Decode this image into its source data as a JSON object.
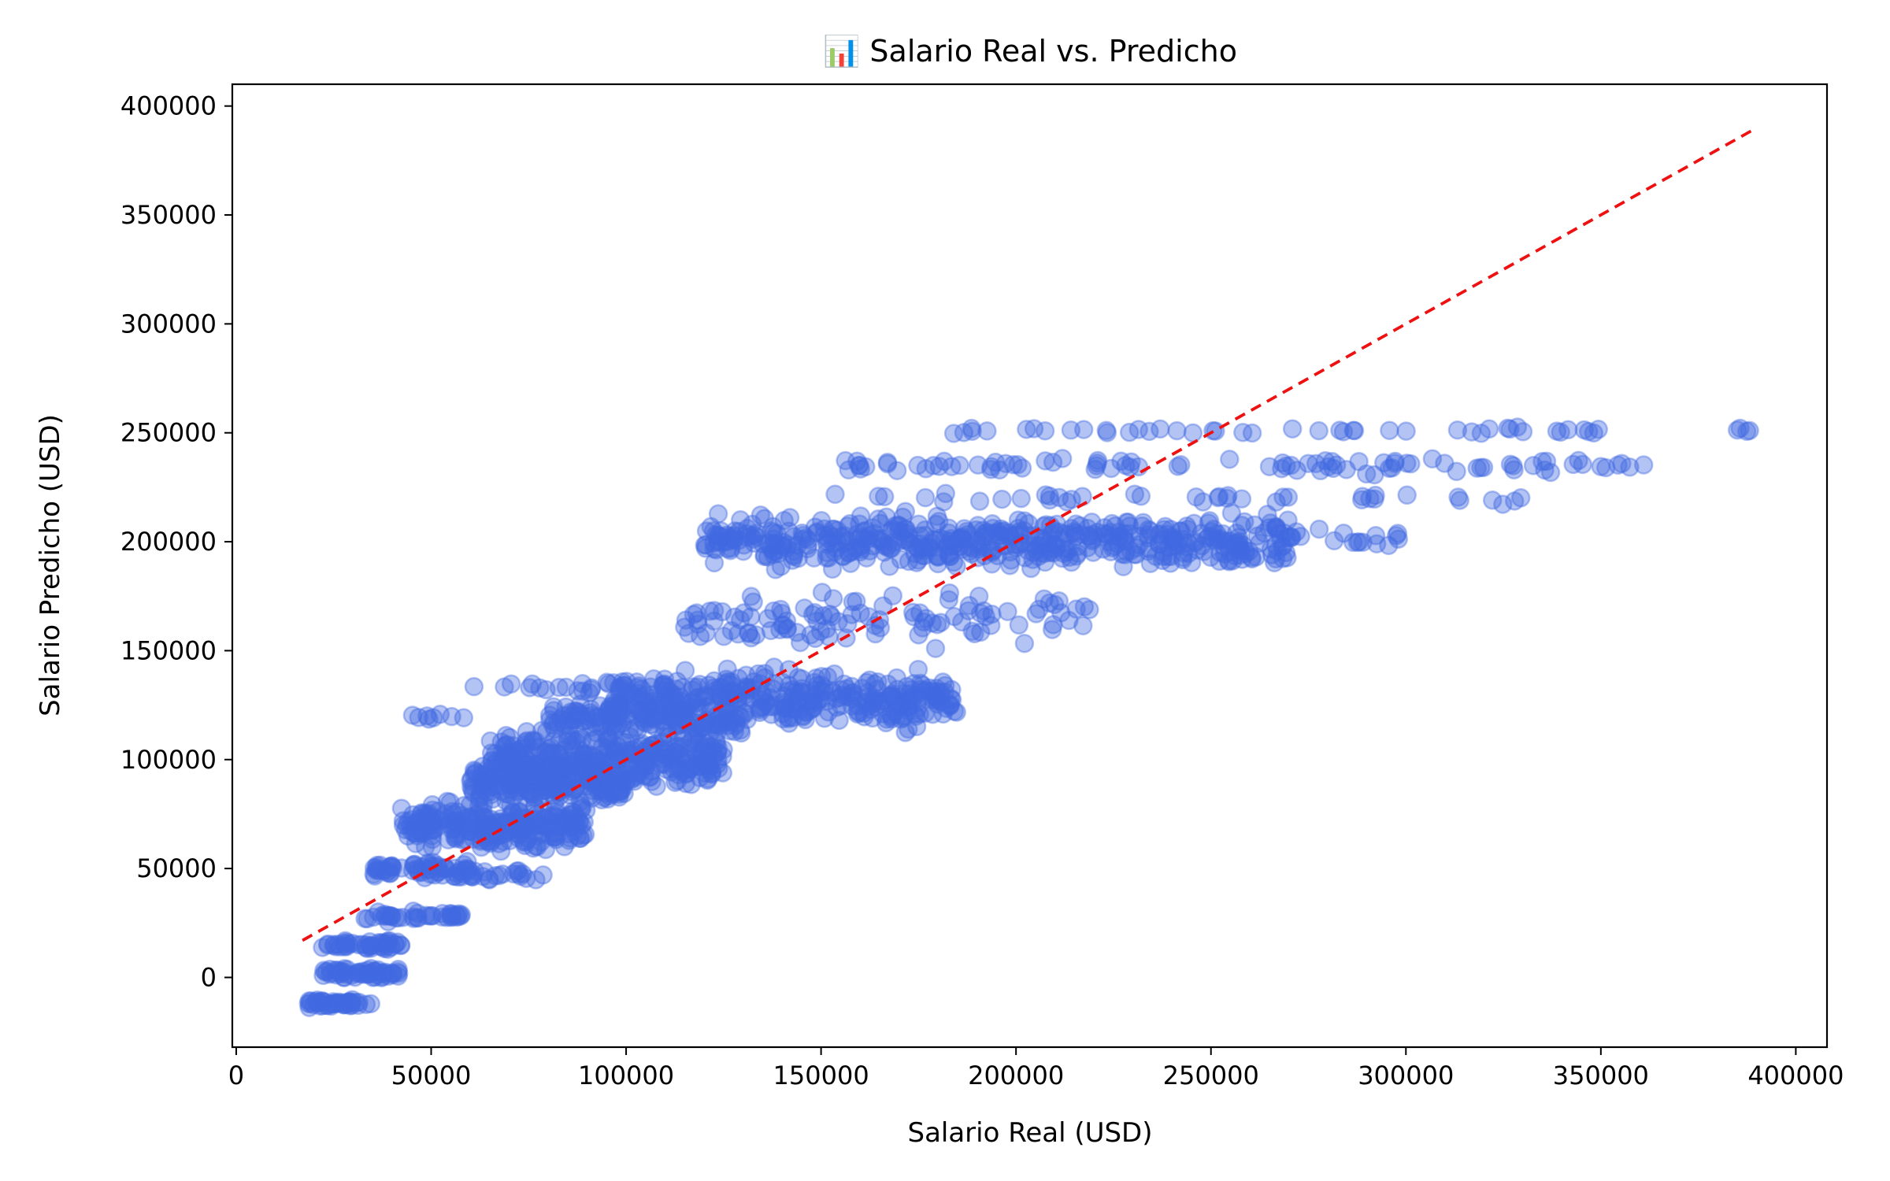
{
  "chart_data": {
    "type": "scatter",
    "title": "📊 Salario Real vs. Predicho",
    "xlabel": "Salario Real (USD)",
    "ylabel": "Salario Predicho (USD)",
    "xlim": [
      -1000,
      408000
    ],
    "ylim": [
      -32000,
      410000
    ],
    "xticks": [
      0,
      50000,
      100000,
      150000,
      200000,
      250000,
      300000,
      350000,
      400000
    ],
    "yticks": [
      0,
      50000,
      100000,
      150000,
      200000,
      250000,
      300000,
      350000,
      400000
    ],
    "xtick_labels": [
      "0",
      "50000",
      "100000",
      "150000",
      "200000",
      "250000",
      "300000",
      "350000",
      "400000"
    ],
    "ytick_labels": [
      "0",
      "50000",
      "100000",
      "150000",
      "200000",
      "250000",
      "300000",
      "350000",
      "400000"
    ],
    "grid": false,
    "point_color": "#4169e1",
    "point_alpha": 0.4,
    "line_color": "#ee1111",
    "reference_line": {
      "style": "dashed",
      "from": [
        17000,
        17000
      ],
      "to": [
        389000,
        389000
      ]
    },
    "clusters": [
      {
        "x_range": [
          17000,
          35000
        ],
        "y": -12000,
        "count": 45,
        "y_spread": 1200
      },
      {
        "x_range": [
          22000,
          42000
        ],
        "y": 2000,
        "count": 55,
        "y_spread": 1500
      },
      {
        "x_range": [
          22000,
          43000
        ],
        "y": 15000,
        "count": 45,
        "y_spread": 1500
      },
      {
        "x_range": [
          33000,
          58000
        ],
        "y": 28000,
        "count": 40,
        "y_spread": 1500
      },
      {
        "x_range": [
          35000,
          60000
        ],
        "y": 50000,
        "count": 55,
        "y_spread": 2500
      },
      {
        "x_range": [
          42000,
          90000
        ],
        "y": 70000,
        "count": 260,
        "y_spread": 7000
      },
      {
        "x_range": [
          48000,
          80000
        ],
        "y": 47000,
        "count": 30,
        "y_spread": 1500
      },
      {
        "x_range": [
          60000,
          100000
        ],
        "y": 88000,
        "count": 180,
        "y_spread": 6000
      },
      {
        "x_range": [
          65000,
          125000
        ],
        "y": 100000,
        "count": 350,
        "y_spread": 9000
      },
      {
        "x_range": [
          95000,
          185000
        ],
        "y": 128000,
        "count": 380,
        "y_spread": 9000
      },
      {
        "x_range": [
          80000,
          130000
        ],
        "y": 118000,
        "count": 130,
        "y_spread": 5000
      },
      {
        "x_range": [
          45000,
          60000
        ],
        "y": 120000,
        "count": 8,
        "y_spread": 1000
      },
      {
        "x_range": [
          60000,
          95000
        ],
        "y": 133000,
        "count": 15,
        "y_spread": 2000
      },
      {
        "x_range": [
          115000,
          220000
        ],
        "y": 165000,
        "count": 110,
        "y_spread": 8000
      },
      {
        "x_range": [
          120000,
          270000
        ],
        "y": 200000,
        "count": 520,
        "y_spread": 8000
      },
      {
        "x_range": [
          140000,
          330000
        ],
        "y": 220000,
        "count": 40,
        "y_spread": 2000
      },
      {
        "x_range": [
          155000,
          362000
        ],
        "y": 235000,
        "count": 90,
        "y_spread": 2500
      },
      {
        "x_range": [
          183000,
          352000
        ],
        "y": 251000,
        "count": 45,
        "y_spread": 1000
      },
      {
        "x_range": [
          270000,
          300000
        ],
        "y": 202000,
        "count": 18,
        "y_spread": 3000
      },
      {
        "x_range": [
          385000,
          389000
        ],
        "y": 251000,
        "count": 4,
        "y_spread": 1000
      }
    ]
  }
}
